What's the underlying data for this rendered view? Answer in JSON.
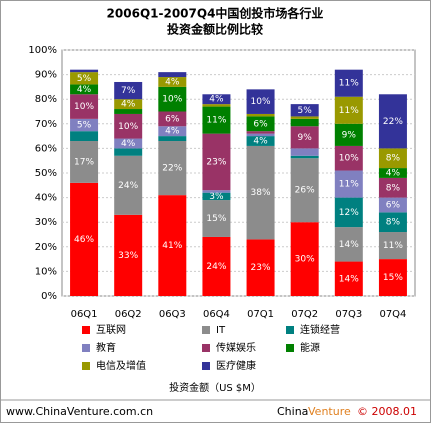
{
  "chart_data": {
    "type": "stacked_bar",
    "title": "2006Q1-2007Q4中国创投市场各行业",
    "subtitle": "投资金额比例比较",
    "x_label": "投资金额（US $M）",
    "categories": [
      "06Q1",
      "06Q2",
      "06Q3",
      "06Q4",
      "07Q1",
      "07Q2",
      "07Q3",
      "07Q4"
    ],
    "ylim": [
      0,
      100
    ],
    "yticks": [
      {
        "value": 0,
        "label": "0%"
      },
      {
        "value": 10,
        "label": "10%"
      },
      {
        "value": 20,
        "label": "20%"
      },
      {
        "value": 30,
        "label": "30%"
      },
      {
        "value": 40,
        "label": "40%"
      },
      {
        "value": 50,
        "label": "50%"
      },
      {
        "value": 60,
        "label": "60%"
      },
      {
        "value": 70,
        "label": "70%"
      },
      {
        "value": 80,
        "label": "80%"
      },
      {
        "value": 90,
        "label": "90%"
      },
      {
        "value": 100,
        "label": "100%"
      }
    ],
    "grid": true,
    "series": [
      {
        "name": "互联网",
        "color": "#ff0000",
        "values": [
          46,
          33,
          41,
          24,
          23,
          30,
          14,
          15
        ],
        "value_labels": [
          "46%",
          "33%",
          "41%",
          "24%",
          "23%",
          "30%",
          "14%",
          "15%"
        ]
      },
      {
        "name": "IT",
        "color": "#8c8c8c",
        "values": [
          17,
          24,
          22,
          15,
          38,
          26,
          14,
          11
        ],
        "value_labels": [
          "17%",
          "24%",
          "22%",
          "15%",
          "38%",
          "26%",
          "14%",
          "11%"
        ]
      },
      {
        "name": "连锁经营",
        "color": "#008080",
        "values": [
          4,
          3,
          2,
          3,
          4,
          1,
          12,
          8
        ],
        "value_labels": [
          null,
          null,
          null,
          "3%",
          "4%",
          null,
          "12%",
          "8%"
        ]
      },
      {
        "name": "教育",
        "color": "#8080c0",
        "values": [
          5,
          4,
          4,
          1,
          1,
          3,
          11,
          6
        ],
        "value_labels": [
          "5%",
          "4%",
          "4%",
          null,
          null,
          null,
          "11%",
          "6%"
        ]
      },
      {
        "name": "传媒娱乐",
        "color": "#993366",
        "values": [
          10,
          10,
          6,
          23,
          1,
          9,
          10,
          8
        ],
        "value_labels": [
          "10%",
          "10%",
          "6%",
          "23%",
          null,
          "9%",
          "10%",
          "8%"
        ]
      },
      {
        "name": "能源",
        "color": "#008000",
        "values": [
          4,
          2,
          10,
          11,
          6,
          3,
          9,
          4
        ],
        "value_labels": [
          "4%",
          null,
          "10%",
          "11%",
          "6%",
          null,
          "9%",
          "4%"
        ]
      },
      {
        "name": "电信及增值",
        "color": "#999900",
        "values": [
          5,
          4,
          4,
          1,
          1,
          1,
          11,
          8
        ],
        "value_labels": [
          "5%",
          "4%",
          "4%",
          null,
          null,
          null,
          "11%",
          "8%"
        ]
      },
      {
        "name": "医疗健康",
        "color": "#333399",
        "values": [
          1,
          7,
          2,
          4,
          10,
          5,
          11,
          22
        ],
        "value_labels": [
          null,
          "7%",
          null,
          "4%",
          "10%",
          "5%",
          "11%",
          "22%"
        ]
      }
    ],
    "footer": {
      "url": "www.ChinaVenture.com.cn",
      "brand_a": "China",
      "brand_b": "Venture",
      "copyright": "© 2008.01"
    }
  }
}
